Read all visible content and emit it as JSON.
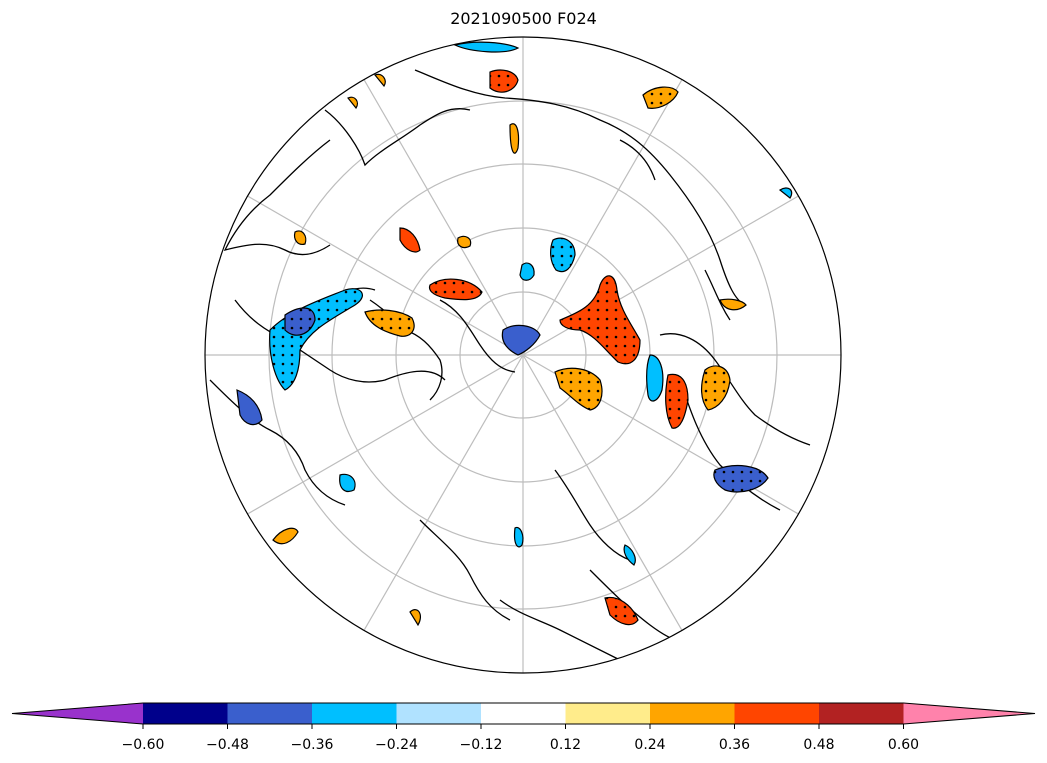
{
  "title": "2021090500 F024",
  "map": {
    "projection": "north polar stereographic",
    "graticule": true,
    "features": [
      "coastlines",
      "shaded anomaly contours",
      "significance stippling"
    ]
  },
  "colorbar": {
    "extend": "both",
    "colors": [
      "#9932CC",
      "#00008B",
      "#3A5FCD",
      "#00BFFF",
      "#B0E2FF",
      "#FFFFFF",
      "#FFEC8B",
      "#FFA500",
      "#FF4500",
      "#B22222",
      "#FF82AB"
    ],
    "tick_labels": [
      "−0.60",
      "−0.48",
      "−0.36",
      "−0.24",
      "−0.12",
      "0.12",
      "0.24",
      "0.36",
      "0.48",
      "0.60"
    ]
  }
}
